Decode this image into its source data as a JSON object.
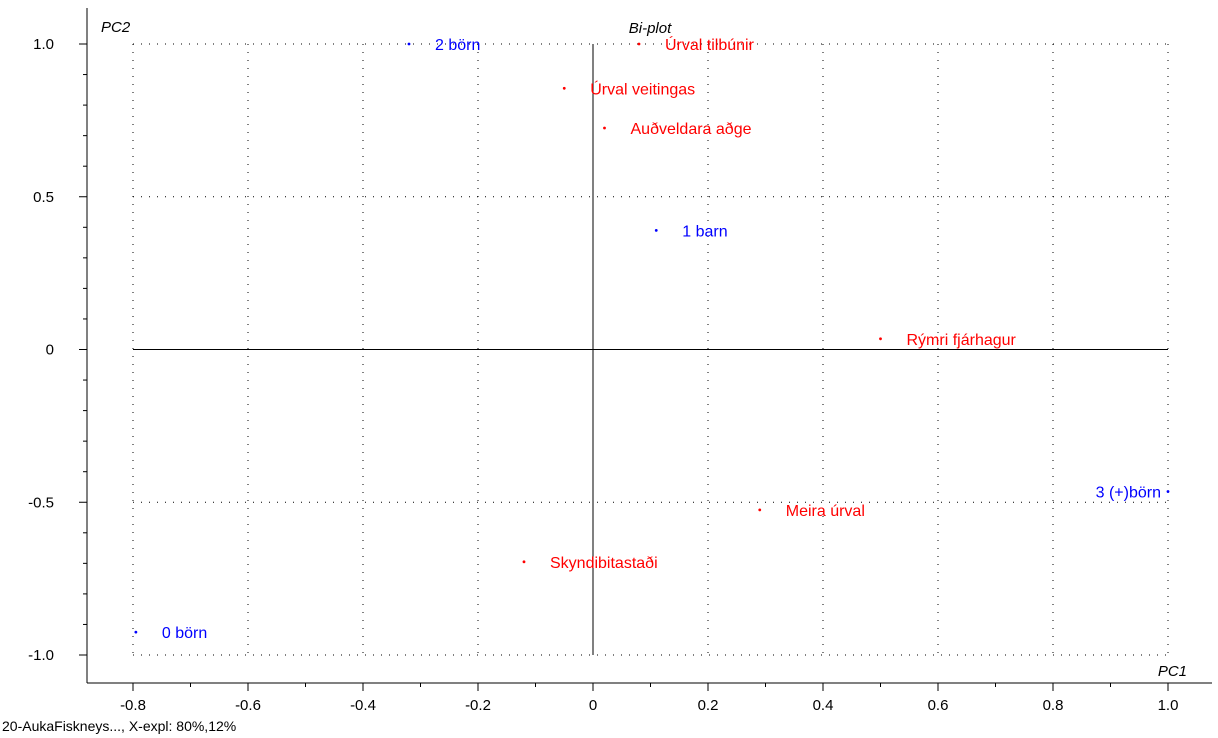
{
  "footer": "20-AukaFiskneys..., X-expl: 80%,12%",
  "colors": {
    "red": "#ff0000",
    "blue": "#0000ff",
    "axis": "#000000"
  },
  "chart_data": {
    "type": "scatter",
    "title": "Bi-plot",
    "xlabel": "PC1",
    "ylabel": "PC2",
    "xlim": [
      -0.8,
      1.0
    ],
    "ylim": [
      -1.0,
      1.0
    ],
    "xticks": [
      -0.8,
      -0.6,
      -0.4,
      -0.2,
      0,
      0.2,
      0.4,
      0.6,
      0.8,
      1.0
    ],
    "xtick_labels": [
      "-0.8",
      "-0.6",
      "-0.4",
      "-0.2",
      "0",
      "0.2",
      "0.4",
      "0.6",
      "0.8",
      "1.0"
    ],
    "yticks": [
      1.0,
      0.5,
      0,
      -0.5,
      -1.0
    ],
    "ytick_labels": [
      "1.0",
      "0.5",
      "0",
      "-0.5",
      "-1.0"
    ],
    "grid": true,
    "points": [
      {
        "label": "2 börn",
        "x": -0.32,
        "y": 1.0,
        "color": "blue"
      },
      {
        "label": "Úrval tilbúnir",
        "x": 0.08,
        "y": 1.0,
        "color": "red"
      },
      {
        "label": "Úrval veitingas",
        "x": -0.05,
        "y": 0.855,
        "color": "red"
      },
      {
        "label": "Auðveldara aðge",
        "x": 0.02,
        "y": 0.725,
        "color": "red"
      },
      {
        "label": "1 barn",
        "x": 0.11,
        "y": 0.39,
        "color": "blue"
      },
      {
        "label": "Rýmri fjárhagur",
        "x": 0.5,
        "y": 0.035,
        "color": "red"
      },
      {
        "label": "3 (+)börn",
        "x": 1.0,
        "y": -0.465,
        "color": "blue",
        "anchor": "end"
      },
      {
        "label": "Meira úrval",
        "x": 0.29,
        "y": -0.525,
        "color": "red"
      },
      {
        "label": "Skyndibitastaði",
        "x": -0.12,
        "y": -0.695,
        "color": "red"
      },
      {
        "label": "0 börn",
        "x": -0.795,
        "y": -0.925,
        "color": "blue"
      }
    ]
  }
}
